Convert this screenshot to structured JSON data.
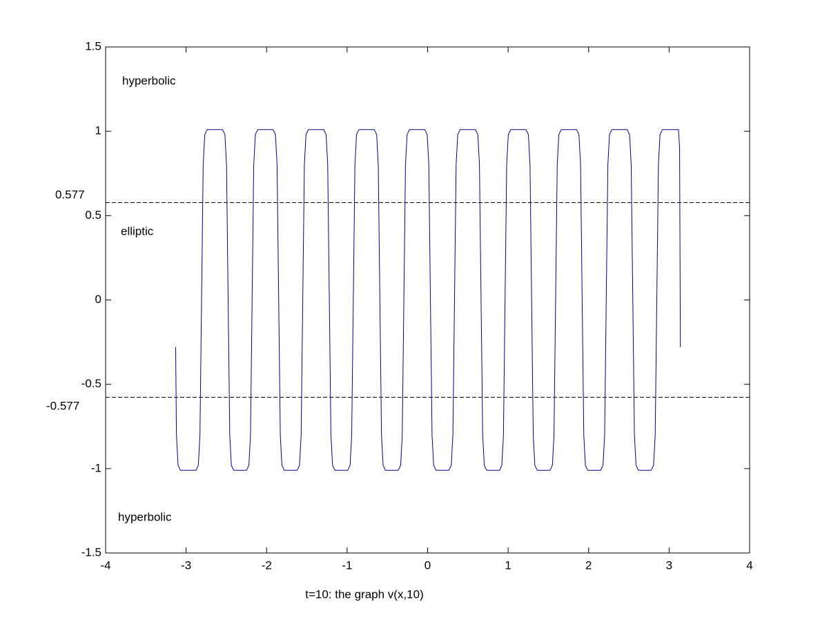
{
  "chart_data": {
    "type": "line",
    "xlabel": "t=10: the graph v(x,10)",
    "annotations": [
      "hyperbolic",
      "elliptic",
      "hyperbolic"
    ],
    "hlines": [
      {
        "value": 0.577,
        "label": "0.577"
      },
      {
        "value": -0.577,
        "label": "-0.577"
      }
    ],
    "x": [
      -3.13,
      -3.12,
      -3.1,
      -3.07,
      -2.878,
      -2.848,
      -2.828,
      -2.788,
      -2.768,
      -2.738,
      -2.548,
      -2.518,
      -2.498,
      -2.458,
      -2.438,
      -2.408,
      -2.25,
      -2.22,
      -2.2,
      -2.16,
      -2.14,
      -2.11,
      -1.92,
      -1.89,
      -1.87,
      -1.83,
      -1.81,
      -1.78,
      -1.621,
      -1.591,
      -1.571,
      -1.531,
      -1.511,
      -1.481,
      -1.291,
      -1.261,
      -1.241,
      -1.201,
      -1.181,
      -1.151,
      -0.993,
      -0.963,
      -0.943,
      -0.903,
      -0.883,
      -0.853,
      -0.663,
      -0.633,
      -0.613,
      -0.573,
      -0.553,
      -0.523,
      -0.365,
      -0.335,
      -0.315,
      -0.275,
      -0.255,
      -0.225,
      -0.035,
      -0.005,
      0.015,
      0.055,
      0.075,
      0.105,
      0.264,
      0.294,
      0.314,
      0.354,
      0.374,
      0.404,
      0.594,
      0.624,
      0.644,
      0.684,
      0.704,
      0.734,
      0.892,
      0.922,
      0.942,
      0.982,
      1.002,
      1.032,
      1.222,
      1.252,
      1.272,
      1.312,
      1.332,
      1.362,
      1.52,
      1.55,
      1.57,
      1.61,
      1.63,
      1.66,
      1.85,
      1.88,
      1.9,
      1.94,
      1.96,
      1.99,
      2.149,
      2.179,
      2.199,
      2.239,
      2.259,
      2.289,
      2.479,
      2.509,
      2.529,
      2.569,
      2.589,
      2.619,
      2.777,
      2.807,
      2.827,
      2.867,
      2.887,
      2.917,
      3.117,
      3.13,
      3.14
    ],
    "series": [
      {
        "color": "#00008b",
        "values": [
          -0.28,
          -0.8,
          -0.98,
          -1.01,
          -1.01,
          -0.98,
          -0.8,
          0.8,
          0.98,
          1.01,
          1.01,
          0.98,
          0.8,
          -0.8,
          -0.98,
          -1.01,
          -1.01,
          -0.98,
          -0.8,
          0.8,
          0.98,
          1.01,
          1.01,
          0.98,
          0.8,
          -0.8,
          -0.98,
          -1.01,
          -1.01,
          -0.98,
          -0.8,
          0.8,
          0.98,
          1.01,
          1.01,
          0.98,
          0.8,
          -0.8,
          -0.98,
          -1.01,
          -1.01,
          -0.98,
          -0.8,
          0.8,
          0.98,
          1.01,
          1.01,
          0.98,
          0.8,
          -0.8,
          -0.98,
          -1.01,
          -1.01,
          -0.98,
          -0.8,
          0.8,
          0.98,
          1.01,
          1.01,
          0.98,
          0.8,
          -0.8,
          -0.98,
          -1.01,
          -1.01,
          -0.98,
          -0.8,
          0.8,
          0.98,
          1.01,
          1.01,
          0.98,
          0.8,
          -0.8,
          -0.98,
          -1.01,
          -1.01,
          -0.98,
          -0.8,
          0.8,
          0.98,
          1.01,
          1.01,
          0.98,
          0.8,
          -0.8,
          -0.98,
          -1.01,
          -1.01,
          -0.98,
          -0.8,
          0.8,
          0.98,
          1.01,
          1.01,
          0.98,
          0.8,
          -0.8,
          -0.98,
          -1.01,
          -1.01,
          -0.98,
          -0.8,
          0.8,
          0.98,
          1.01,
          1.01,
          0.98,
          0.8,
          -0.8,
          -0.98,
          -1.01,
          -1.01,
          -0.98,
          -0.8,
          0.8,
          0.98,
          1.01,
          1.01,
          0.9,
          -0.28
        ]
      }
    ],
    "xlim": [
      -4,
      4
    ],
    "xticks": [
      -4,
      -3,
      -2,
      -1,
      0,
      1,
      2,
      3,
      4
    ],
    "ylim": [
      -1.5,
      1.5
    ],
    "yticks": [
      -1.5,
      -1,
      -0.5,
      0,
      0.5,
      1,
      1.5
    ],
    "grid": false
  }
}
